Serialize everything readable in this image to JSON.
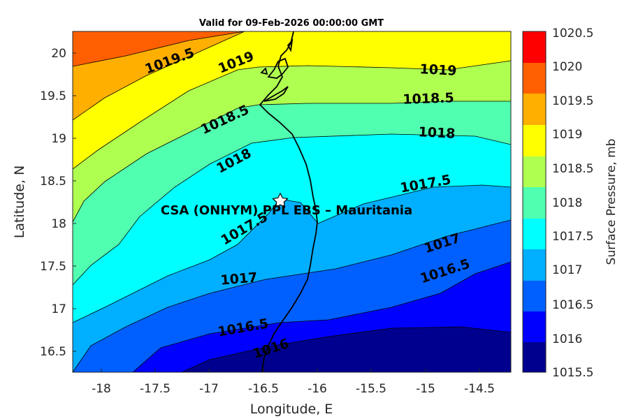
{
  "map": {
    "title": "Valid for 09-Feb-2026 00:00:00 GMT",
    "xlabel": "Longitude, E",
    "ylabel": "Latitude, N",
    "x_ticks": [
      "-18",
      "-17.5",
      "-17",
      "-16.5",
      "-16",
      "-15.5",
      "-15",
      "-14.5"
    ],
    "y_ticks": [
      "16.5",
      "17",
      "17.5",
      "18",
      "18.5",
      "19",
      "19.5",
      "20"
    ],
    "site_label": "CSA (ONHYM) PPL EBS  – Mauritania",
    "colorbar_label": "Surface Pressure, mb",
    "colorbar_ticks": [
      "1015.5",
      "1016",
      "1016.5",
      "1017",
      "1017.5",
      "1018",
      "1018.5",
      "1019",
      "1019.5",
      "1020",
      "1020.5"
    ],
    "colors": [
      "#00008F",
      "#0000FF",
      "#005FFF",
      "#00AFFF",
      "#00FFFF",
      "#50FFAF",
      "#AFFF50",
      "#FFFF00",
      "#FFAF00",
      "#FF5F00",
      "#FF0000"
    ],
    "contour_labels": [
      {
        "text": "1019.5"
      },
      {
        "text": "1019"
      },
      {
        "text": "1019"
      },
      {
        "text": "1018.5"
      },
      {
        "text": "1018.5"
      },
      {
        "text": "1018"
      },
      {
        "text": "1018"
      },
      {
        "text": "1017.5"
      },
      {
        "text": "1017.5"
      },
      {
        "text": "1017"
      },
      {
        "text": "1017"
      },
      {
        "text": "1016.5"
      },
      {
        "text": "1016.5"
      },
      {
        "text": "1016"
      }
    ]
  },
  "chart_data": {
    "type": "contour",
    "title": "Valid for 09-Feb-2026 00:00:00 GMT",
    "xlabel": "Longitude, E",
    "ylabel": "Latitude, N",
    "xlim": [
      -18.25,
      -14.2
    ],
    "ylim": [
      16.25,
      20.25
    ],
    "variable": "Surface Pressure",
    "units": "mb",
    "levels": [
      1015.5,
      1016,
      1016.5,
      1017,
      1017.5,
      1018,
      1018.5,
      1019,
      1019.5,
      1020,
      1020.5
    ],
    "site": {
      "name": "CSA (ONHYM) PPL EBS  – Mauritania",
      "lon": -16.35,
      "lat": 18.27
    }
  }
}
